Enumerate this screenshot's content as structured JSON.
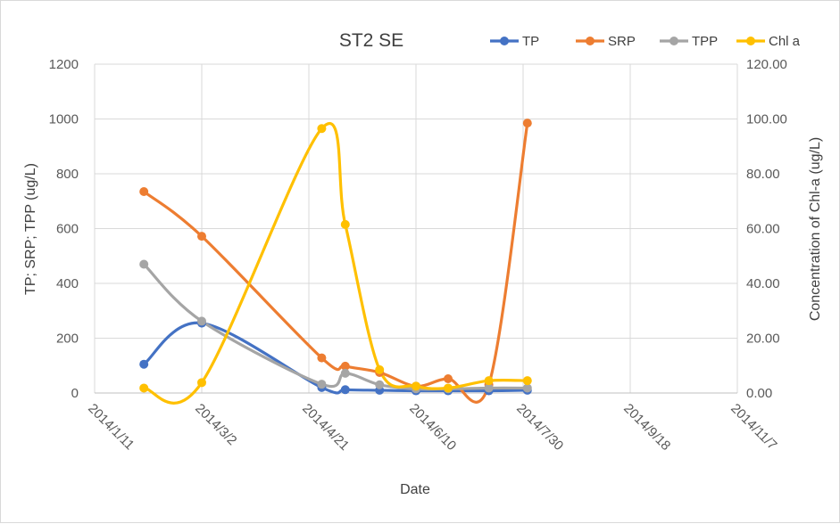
{
  "chart_data": {
    "type": "line",
    "title": "ST2 SE",
    "xlabel": "Date",
    "ylabel": "TP; SRP; TPP (ug/L)",
    "y2label": "Concentration of Chl-a (ug/L)",
    "ylim": [
      0,
      1200
    ],
    "y2lim": [
      0,
      120
    ],
    "xlim": [
      "2014-01-11",
      "2014-11-07"
    ],
    "x_ticks": [
      "2014/1/11",
      "2014/3/2",
      "2014/4/21",
      "2014/6/10",
      "2014/7/30",
      "2014/9/18",
      "2014/11/7"
    ],
    "y_ticks": [
      "0",
      "200",
      "400",
      "600",
      "800",
      "1000",
      "1200"
    ],
    "y2_ticks": [
      "0.00",
      "20.00",
      "40.00",
      "60.00",
      "80.00",
      "100.00",
      "120.00"
    ],
    "grid": true,
    "legend_position": "top-right",
    "series": [
      {
        "name": "TP",
        "color": "#4472c4",
        "axis": "left",
        "points": [
          [
            "2014-02-03",
            105
          ],
          [
            "2014-03-02",
            255
          ],
          [
            "2014-04-27",
            20
          ],
          [
            "2014-05-08",
            12
          ],
          [
            "2014-05-24",
            10
          ],
          [
            "2014-06-10",
            8
          ],
          [
            "2014-06-25",
            8
          ],
          [
            "2014-07-14",
            8
          ],
          [
            "2014-08-01",
            10
          ]
        ]
      },
      {
        "name": "SRP",
        "color": "#ed7d31",
        "axis": "left",
        "points": [
          [
            "2014-02-03",
            735
          ],
          [
            "2014-03-02",
            572
          ],
          [
            "2014-04-27",
            128
          ],
          [
            "2014-05-08",
            98
          ],
          [
            "2014-05-24",
            75
          ],
          [
            "2014-06-10",
            25
          ],
          [
            "2014-06-25",
            52
          ],
          [
            "2014-07-14",
            30
          ],
          [
            "2014-08-01",
            985
          ]
        ]
      },
      {
        "name": "TPP",
        "color": "#a5a5a5",
        "axis": "left",
        "points": [
          [
            "2014-02-03",
            470
          ],
          [
            "2014-03-02",
            262
          ],
          [
            "2014-04-27",
            32
          ],
          [
            "2014-05-08",
            72
          ],
          [
            "2014-05-24",
            30
          ],
          [
            "2014-06-10",
            15
          ],
          [
            "2014-06-25",
            15
          ],
          [
            "2014-07-14",
            18
          ],
          [
            "2014-08-01",
            18
          ]
        ]
      },
      {
        "name": "Chl a",
        "color": "#ffc000",
        "axis": "right",
        "points": [
          [
            "2014-02-03",
            1.8
          ],
          [
            "2014-03-02",
            3.8
          ],
          [
            "2014-04-27",
            96.5
          ],
          [
            "2014-05-08",
            61.5
          ],
          [
            "2014-05-24",
            8.5
          ],
          [
            "2014-06-10",
            2.5
          ],
          [
            "2014-06-25",
            1.8
          ],
          [
            "2014-07-14",
            4.5
          ],
          [
            "2014-08-01",
            4.5
          ]
        ]
      }
    ]
  }
}
